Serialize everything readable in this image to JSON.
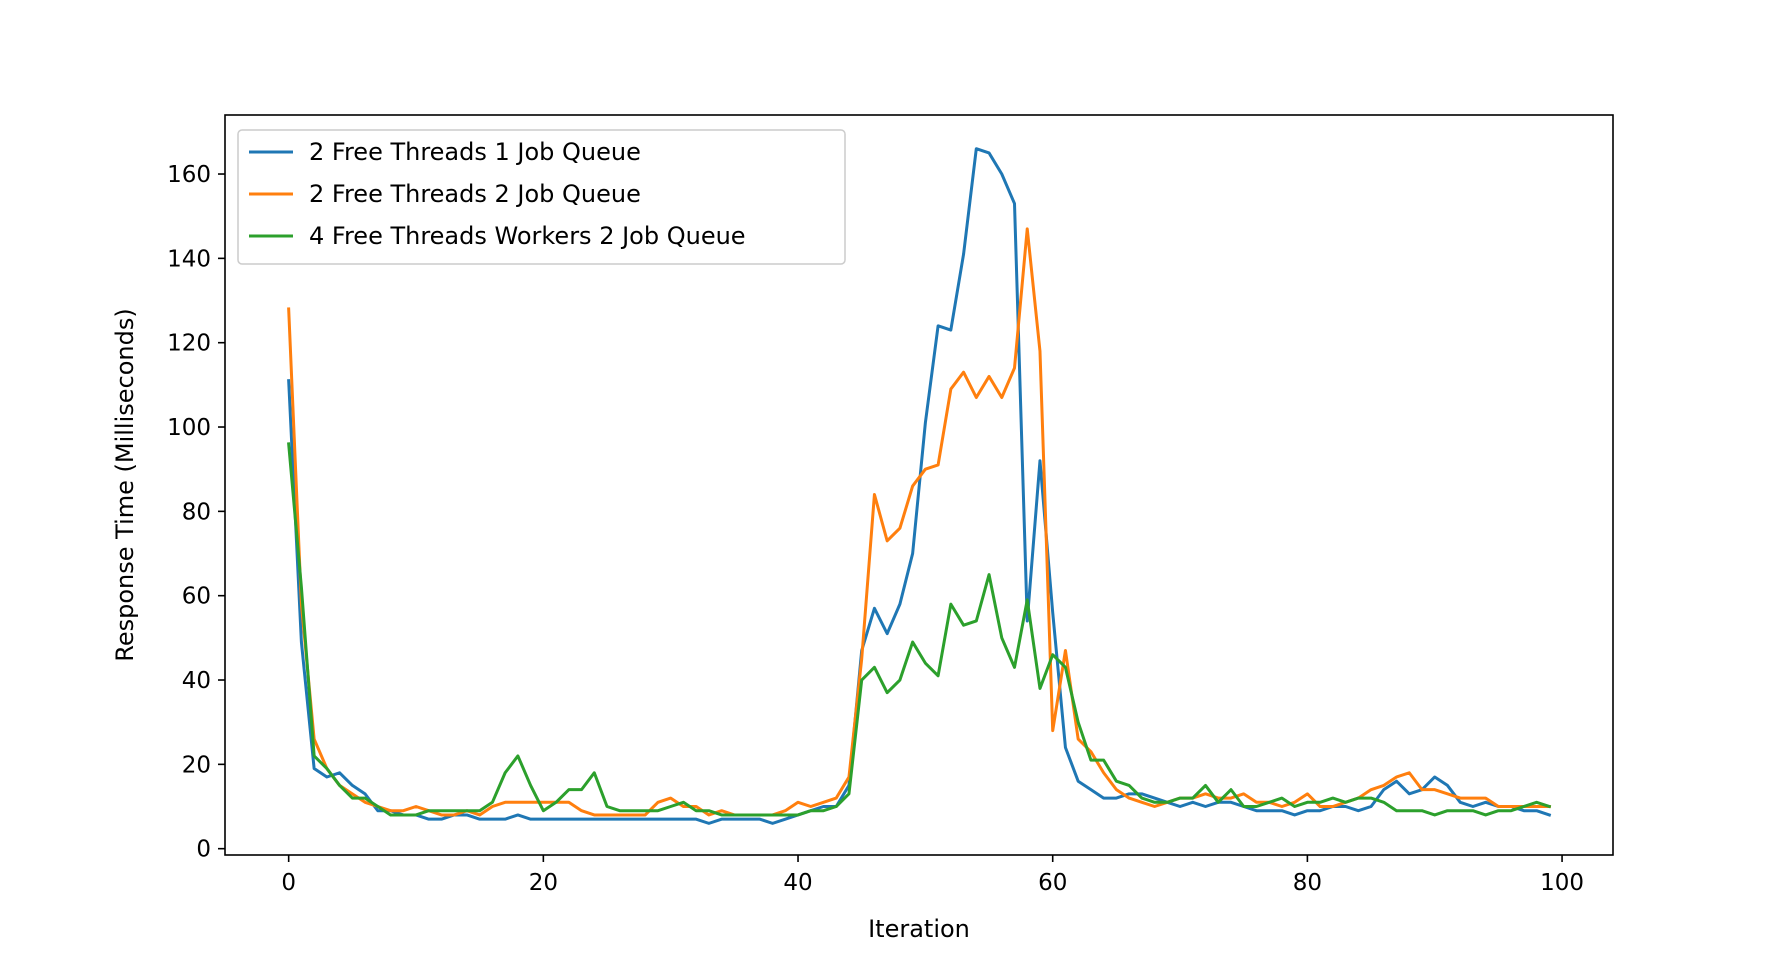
{
  "chart_data": {
    "type": "line",
    "title": "",
    "xlabel": "Iteration",
    "ylabel": "Response Time (Milliseconds)",
    "xlim": [
      -5,
      104
    ],
    "ylim": [
      -1.5,
      174
    ],
    "xticks": [
      0,
      20,
      40,
      60,
      80,
      100
    ],
    "yticks": [
      0,
      20,
      40,
      60,
      80,
      100,
      120,
      140,
      160
    ],
    "grid": false,
    "legend": "top-left",
    "series": [
      {
        "name": "2 Free Threads 1 Job Queue",
        "color": "#1f77b4",
        "values": [
          111,
          49,
          19,
          17,
          18,
          15,
          13,
          9,
          9,
          8,
          8,
          7,
          7,
          8,
          8,
          7,
          7,
          7,
          8,
          7,
          7,
          7,
          7,
          7,
          7,
          7,
          7,
          7,
          7,
          7,
          7,
          7,
          7,
          6,
          7,
          7,
          7,
          7,
          6,
          7,
          8,
          9,
          10,
          10,
          15,
          47,
          57,
          51,
          58,
          70,
          101,
          124,
          123,
          141,
          166,
          165,
          160,
          153,
          54,
          92,
          56,
          24,
          16,
          14,
          12,
          12,
          13,
          13,
          12,
          11,
          10,
          11,
          10,
          11,
          11,
          10,
          9,
          9,
          9,
          8,
          9,
          9,
          10,
          10,
          9,
          10,
          14,
          16,
          13,
          14,
          17,
          15,
          11,
          10,
          11,
          10,
          10,
          9,
          9,
          8
        ]
      },
      {
        "name": "2 Free Threads 2 Job Queue",
        "color": "#ff7f0e",
        "values": [
          128,
          58,
          26,
          19,
          15,
          13,
          11,
          10,
          9,
          9,
          10,
          9,
          8,
          8,
          9,
          8,
          10,
          11,
          11,
          11,
          11,
          11,
          11,
          9,
          8,
          8,
          8,
          8,
          8,
          11,
          12,
          10,
          10,
          8,
          9,
          8,
          8,
          8,
          8,
          9,
          11,
          10,
          11,
          12,
          17,
          45,
          84,
          73,
          76,
          86,
          90,
          91,
          109,
          113,
          107,
          112,
          107,
          114,
          147,
          118,
          28,
          47,
          26,
          23,
          18,
          14,
          12,
          11,
          10,
          11,
          12,
          12,
          13,
          12,
          12,
          13,
          11,
          11,
          10,
          11,
          13,
          10,
          10,
          11,
          12,
          14,
          15,
          17,
          18,
          14,
          14,
          13,
          12,
          12,
          12,
          10,
          10,
          10,
          10,
          10
        ]
      },
      {
        "name": "4 Free Threads Workers 2 Job Queue",
        "color": "#2ca02c",
        "values": [
          96,
          62,
          22,
          19,
          15,
          12,
          12,
          10,
          8,
          8,
          8,
          9,
          9,
          9,
          9,
          9,
          11,
          18,
          22,
          15,
          9,
          11,
          14,
          14,
          18,
          10,
          9,
          9,
          9,
          9,
          10,
          11,
          9,
          9,
          8,
          8,
          8,
          8,
          8,
          8,
          8,
          9,
          9,
          10,
          13,
          40,
          43,
          37,
          40,
          49,
          44,
          41,
          58,
          53,
          54,
          65,
          50,
          43,
          59,
          38,
          46,
          43,
          30,
          21,
          21,
          16,
          15,
          12,
          11,
          11,
          12,
          12,
          15,
          11,
          14,
          10,
          10,
          11,
          12,
          10,
          11,
          11,
          12,
          11,
          12,
          12,
          11,
          9,
          9,
          9,
          8,
          9,
          9,
          9,
          8,
          9,
          9,
          10,
          11,
          10
        ]
      }
    ]
  }
}
